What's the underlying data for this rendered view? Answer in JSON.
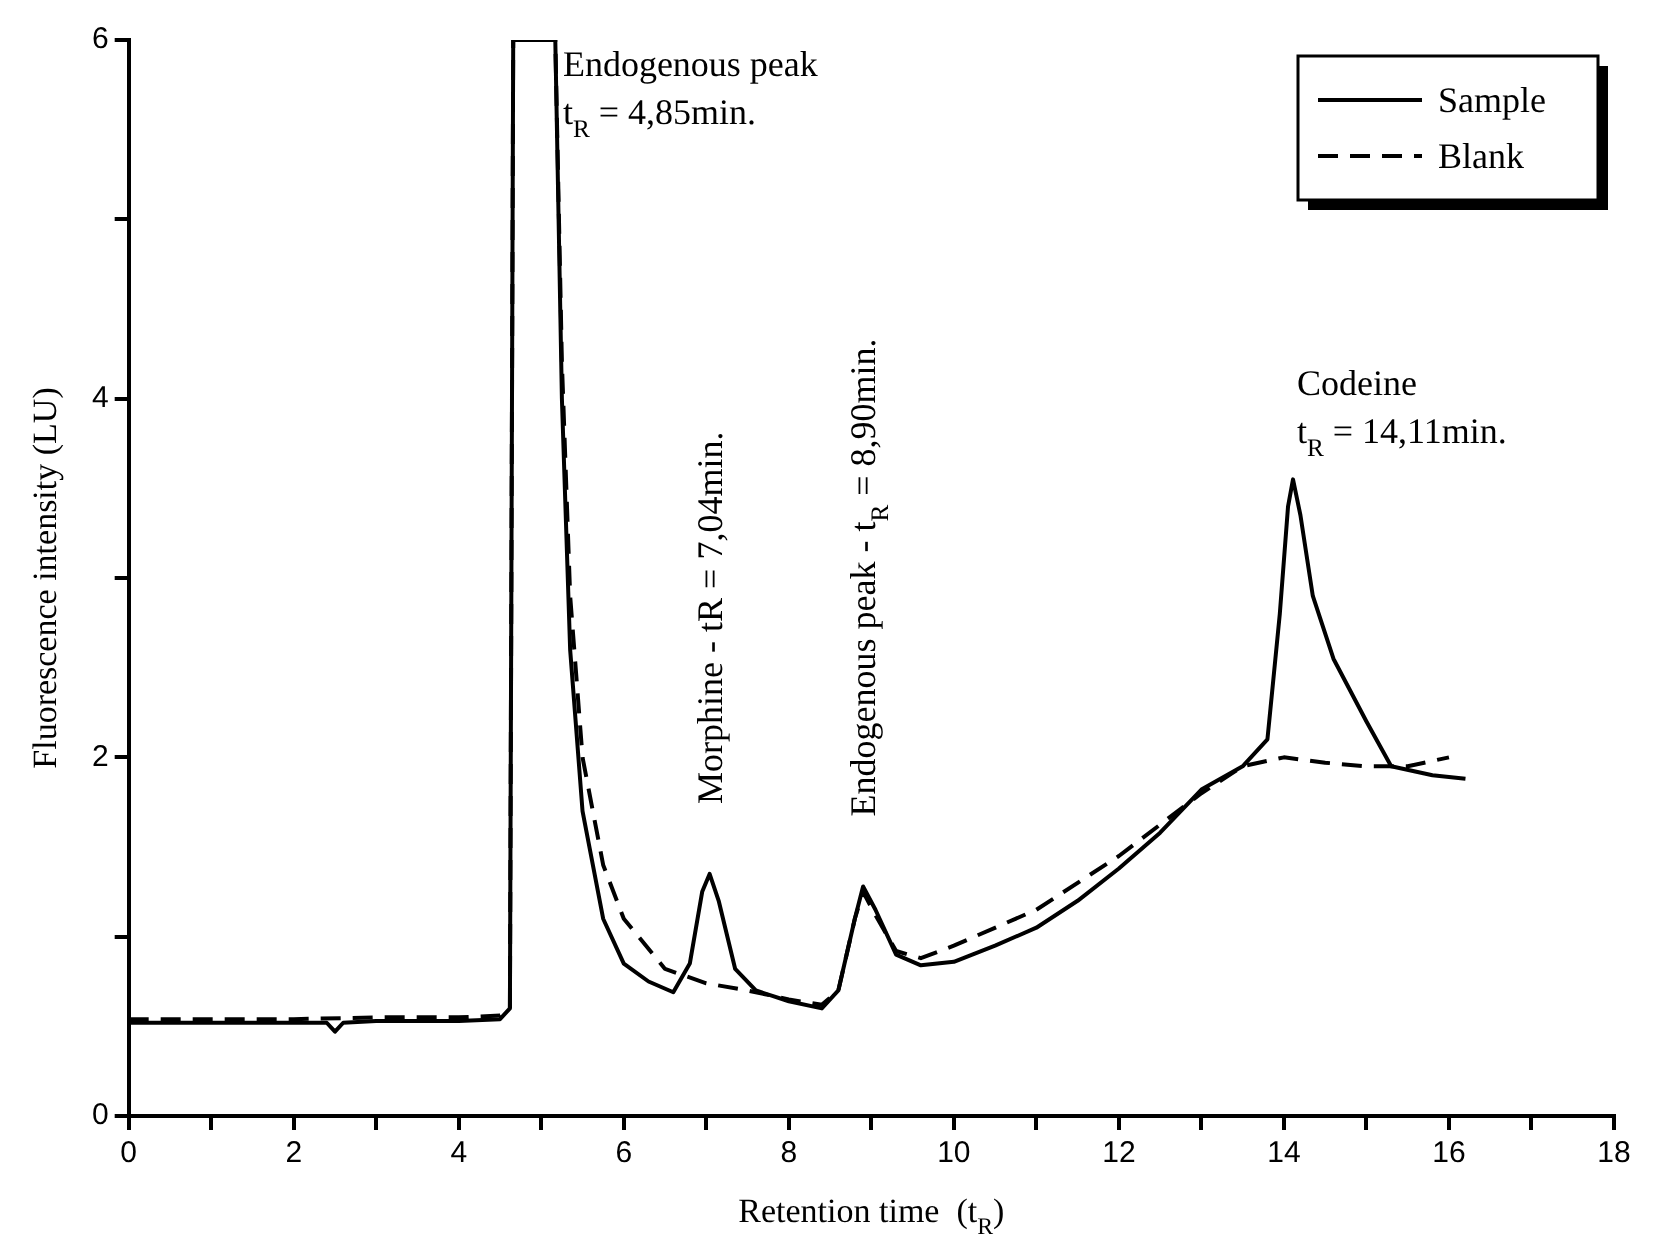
{
  "chart_data": {
    "type": "line",
    "xlabel": "Retention time  (t$_{R}$)",
    "ylabel": "Fluorescence intensity (LU)",
    "xlim": [
      0,
      18
    ],
    "xticks": [
      0,
      {
        "value": 1,
        "label": null
      },
      2,
      {
        "value": 3,
        "label": null
      },
      4,
      {
        "value": 5,
        "label": null
      },
      6,
      {
        "value": 7,
        "label": null
      },
      8,
      {
        "value": 9,
        "label": null
      },
      10,
      {
        "value": 11,
        "label": null
      },
      12,
      {
        "value": 13,
        "label": null
      },
      14,
      {
        "value": 15,
        "label": null
      },
      16,
      {
        "value": 17,
        "label": null
      },
      18
    ],
    "ylim": [
      0,
      6
    ],
    "yticks": [
      0,
      {
        "value": 1,
        "label": null
      },
      2,
      {
        "value": 3,
        "label": null
      },
      4,
      {
        "value": 5,
        "label": null
      },
      6
    ],
    "legend": "top right",
    "grid": false,
    "series": [
      {
        "name": "Sample",
        "color": "#000000",
        "line_style": "solid",
        "x": [
          0,
          1,
          2,
          2.4,
          2.5,
          2.6,
          3,
          4,
          4.5,
          4.62,
          4.66,
          5.17,
          5.25,
          5.35,
          5.5,
          5.75,
          6,
          6.3,
          6.6,
          6.8,
          6.95,
          7.04,
          7.15,
          7.35,
          7.6,
          8,
          8.4,
          8.6,
          8.8,
          8.9,
          9.05,
          9.3,
          9.6,
          10,
          10.5,
          11,
          11.5,
          12,
          12.5,
          13,
          13.5,
          13.8,
          13.95,
          14.05,
          14.11,
          14.2,
          14.35,
          14.6,
          15,
          15.3,
          15.8,
          16.2
        ],
        "values": [
          0.52,
          0.52,
          0.52,
          0.52,
          0.47,
          0.52,
          0.53,
          0.53,
          0.54,
          0.6,
          6,
          6,
          4.0,
          2.6,
          1.7,
          1.1,
          0.85,
          0.75,
          0.69,
          0.85,
          1.25,
          1.35,
          1.2,
          0.82,
          0.7,
          0.64,
          0.6,
          0.7,
          1.1,
          1.28,
          1.15,
          0.9,
          0.84,
          0.86,
          0.95,
          1.05,
          1.2,
          1.38,
          1.58,
          1.82,
          1.95,
          2.1,
          2.8,
          3.4,
          3.55,
          3.35,
          2.9,
          2.55,
          2.2,
          1.95,
          1.9,
          1.88
        ]
      },
      {
        "name": "Blank",
        "color": "#000000",
        "line_style": "dashed",
        "x": [
          0,
          1,
          2,
          3,
          4,
          4.5,
          4.62,
          4.66,
          5.17,
          5.25,
          5.35,
          5.5,
          5.75,
          6,
          6.5,
          7,
          7.5,
          8,
          8.4,
          8.6,
          8.8,
          8.9,
          9.05,
          9.3,
          9.6,
          10,
          11,
          12,
          13,
          13.5,
          14,
          14.5,
          15,
          15.5,
          16
        ],
        "values": [
          0.54,
          0.54,
          0.54,
          0.55,
          0.55,
          0.56,
          0.6,
          6,
          6,
          4.2,
          2.9,
          2.0,
          1.4,
          1.1,
          0.82,
          0.74,
          0.7,
          0.65,
          0.62,
          0.7,
          1.1,
          1.25,
          1.12,
          0.92,
          0.88,
          0.95,
          1.15,
          1.45,
          1.8,
          1.95,
          2.0,
          1.97,
          1.95,
          1.95,
          2.0
        ]
      }
    ],
    "annotations": [
      {
        "text": "Endogenous peak\nt$_{R}$ = 4,85min.",
        "x": 4.85,
        "y": 6
      },
      {
        "text": "Morphine - tR = 7,04min.",
        "x": 7.04,
        "y": 1.35
      },
      {
        "text": "Endogenous peak - t$_{R}$ = 8,90min.",
        "x": 8.9,
        "y": 1.28
      },
      {
        "text": "Codeine\nt$_{R}$ = 14,11min.",
        "x": 14.11,
        "y": 3.55
      }
    ]
  }
}
